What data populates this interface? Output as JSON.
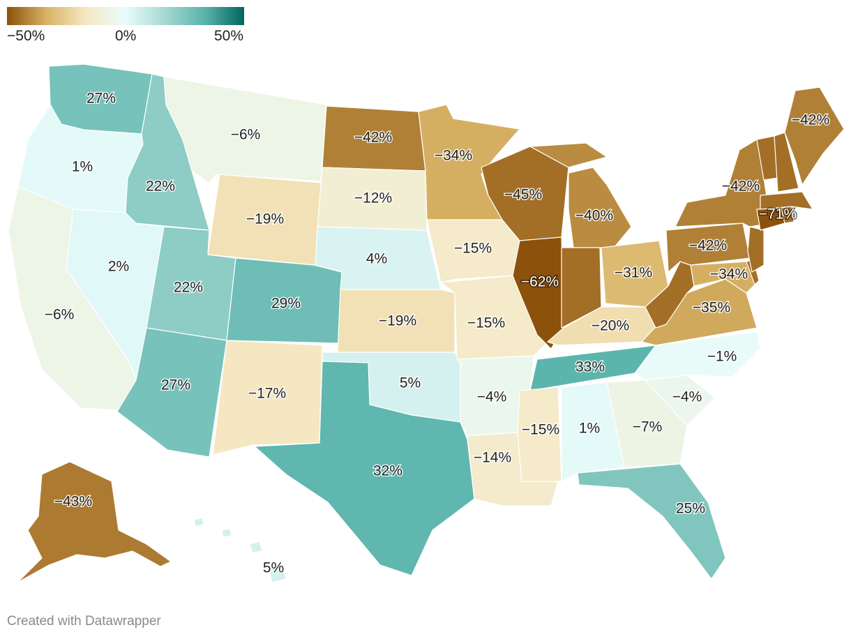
{
  "legend": {
    "colors": [
      "#8c510a",
      "#d8b365",
      "#f6e8c3",
      "#e8fcfc",
      "#a6d8d2",
      "#5ab4ac",
      "#01665e"
    ],
    "ticks": [
      "−50%",
      "0%",
      "50%"
    ]
  },
  "credit": "Created with Datawrapper",
  "chart_data": {
    "type": "choropleth",
    "unit": "%",
    "scale": {
      "min": -50,
      "mid": 0,
      "max": 50
    },
    "regions": [
      {
        "name": "WA",
        "value": 27
      },
      {
        "name": "OR",
        "value": 1
      },
      {
        "name": "CA",
        "value": -6
      },
      {
        "name": "ID",
        "value": 22
      },
      {
        "name": "NV",
        "value": 2
      },
      {
        "name": "UT",
        "value": 22
      },
      {
        "name": "AZ",
        "value": 27
      },
      {
        "name": "MT",
        "value": -6
      },
      {
        "name": "WY",
        "value": -19
      },
      {
        "name": "CO",
        "value": 29
      },
      {
        "name": "NM",
        "value": -17
      },
      {
        "name": "ND",
        "value": -42
      },
      {
        "name": "SD",
        "value": -12
      },
      {
        "name": "NE",
        "value": 4
      },
      {
        "name": "KS",
        "value": -19
      },
      {
        "name": "OK",
        "value": 5
      },
      {
        "name": "TX",
        "value": 32
      },
      {
        "name": "MN",
        "value": -34
      },
      {
        "name": "IA",
        "value": -15
      },
      {
        "name": "MO",
        "value": -15
      },
      {
        "name": "AR",
        "value": -4
      },
      {
        "name": "LA",
        "value": -14
      },
      {
        "name": "WI",
        "value": -45
      },
      {
        "name": "IL",
        "value": -62
      },
      {
        "name": "MI",
        "value": -40
      },
      {
        "name": "IN",
        "value": null
      },
      {
        "name": "OH",
        "value": -31
      },
      {
        "name": "KY",
        "value": -20
      },
      {
        "name": "TN",
        "value": 33
      },
      {
        "name": "MS",
        "value": -15
      },
      {
        "name": "AL",
        "value": 1
      },
      {
        "name": "GA",
        "value": -7
      },
      {
        "name": "FL",
        "value": 25
      },
      {
        "name": "SC",
        "value": -4
      },
      {
        "name": "NC",
        "value": -1
      },
      {
        "name": "VA",
        "value": -35
      },
      {
        "name": "WV",
        "value": null
      },
      {
        "name": "MD",
        "value": -34
      },
      {
        "name": "DE",
        "value": null
      },
      {
        "name": "PA",
        "value": -42
      },
      {
        "name": "NJ",
        "value": null
      },
      {
        "name": "NY",
        "value": -42
      },
      {
        "name": "CT",
        "value": -71
      },
      {
        "name": "RI",
        "value": null
      },
      {
        "name": "MA",
        "value": null
      },
      {
        "name": "VT",
        "value": null
      },
      {
        "name": "NH",
        "value": null
      },
      {
        "name": "ME",
        "value": -42
      },
      {
        "name": "AK",
        "value": -43
      },
      {
        "name": "HI",
        "value": 5
      }
    ]
  }
}
